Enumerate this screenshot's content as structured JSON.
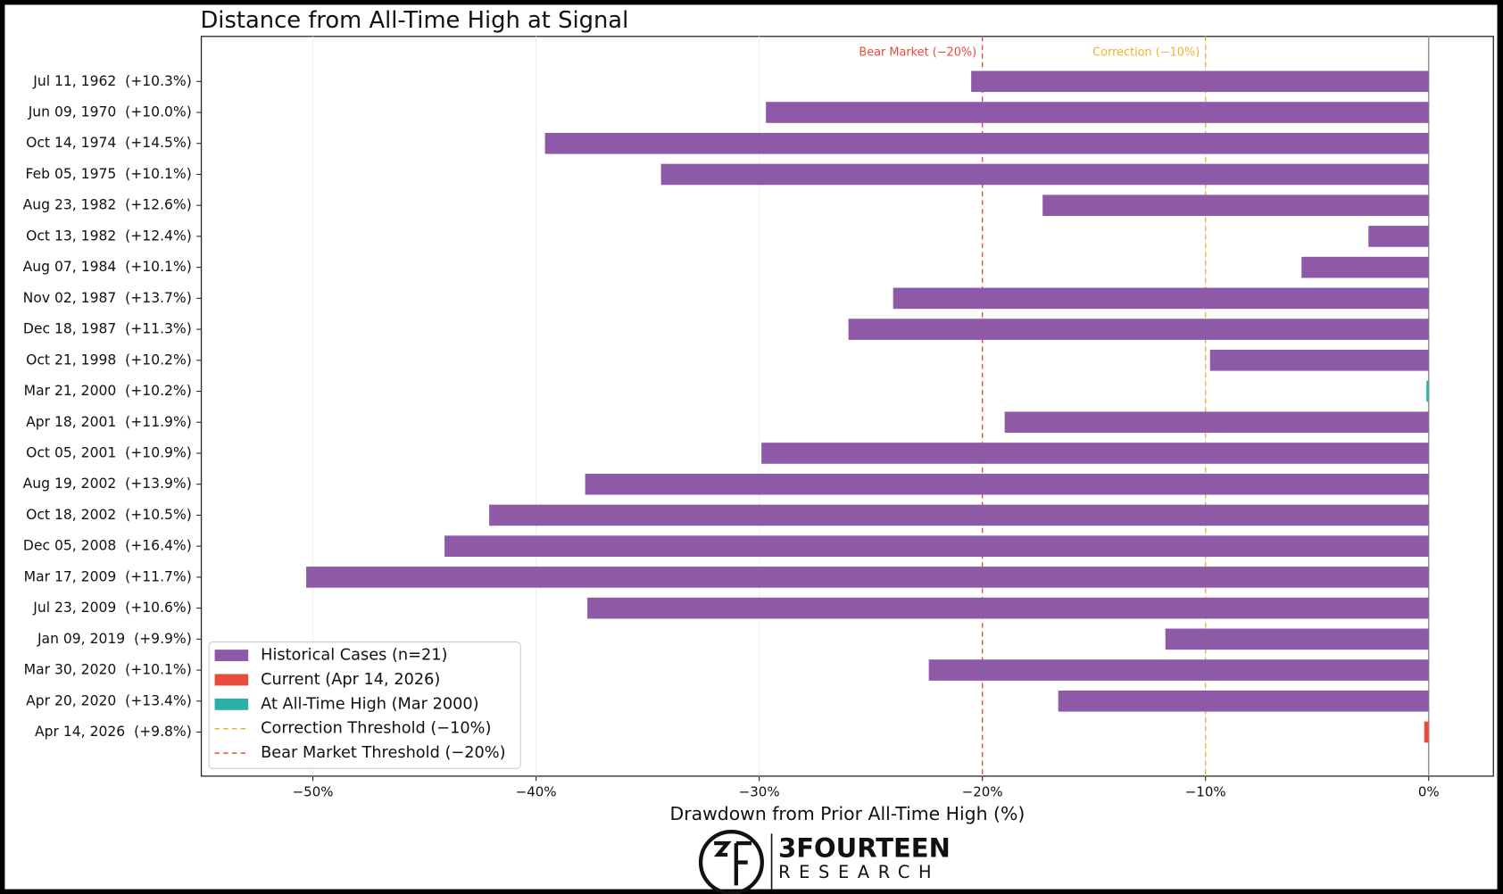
{
  "chart_data": {
    "type": "barh",
    "title": "Distance from All-Time High at Signal",
    "xlabel": "Drawdown from Prior All-Time High (%)",
    "categories": [
      "Jul 11, 1962  (+10.3%)",
      "Jun 09, 1970  (+10.0%)",
      "Oct 14, 1974  (+14.5%)",
      "Feb 05, 1975  (+10.1%)",
      "Aug 23, 1982  (+12.6%)",
      "Oct 13, 1982  (+12.4%)",
      "Aug 07, 1984  (+10.1%)",
      "Nov 02, 1987  (+13.7%)",
      "Dec 18, 1987  (+11.3%)",
      "Oct 21, 1998  (+10.2%)",
      "Mar 21, 2000  (+10.2%)",
      "Apr 18, 2001  (+11.9%)",
      "Oct 05, 2001  (+10.9%)",
      "Aug 19, 2002  (+13.9%)",
      "Oct 18, 2002  (+10.5%)",
      "Dec 05, 2008  (+16.4%)",
      "Mar 17, 2009  (+11.7%)",
      "Jul 23, 2009  (+10.6%)",
      "Jan 09, 2019  (+9.9%)",
      "Mar 30, 2020  (+10.1%)",
      "Apr 20, 2020  (+13.4%)",
      "Apr 14, 2026  (+9.8%)"
    ],
    "values": [
      -20.5,
      -29.7,
      -39.6,
      -34.4,
      -17.3,
      -2.7,
      -5.7,
      -24.0,
      -26.0,
      -9.8,
      -0.1,
      -19.0,
      -29.9,
      -37.8,
      -42.1,
      -44.1,
      -50.3,
      -37.7,
      -11.8,
      -22.4,
      -16.6,
      -0.2
    ],
    "colors": [
      "#8e5aa8",
      "#8e5aa8",
      "#8e5aa8",
      "#8e5aa8",
      "#8e5aa8",
      "#8e5aa8",
      "#8e5aa8",
      "#8e5aa8",
      "#8e5aa8",
      "#8e5aa8",
      "#2ab0a8",
      "#8e5aa8",
      "#8e5aa8",
      "#8e5aa8",
      "#8e5aa8",
      "#8e5aa8",
      "#8e5aa8",
      "#8e5aa8",
      "#8e5aa8",
      "#8e5aa8",
      "#8e5aa8",
      "#e74c3c"
    ],
    "xlim": [
      -55,
      2.9
    ],
    "xticks": [
      {
        "value": -50,
        "label": "−50%"
      },
      {
        "value": -40,
        "label": "−40%"
      },
      {
        "value": -30,
        "label": "−30%"
      },
      {
        "value": -20,
        "label": "−20%"
      },
      {
        "value": -10,
        "label": "−10%"
      },
      {
        "value": 0,
        "label": "0%"
      }
    ],
    "grid": true,
    "reference_lines": [
      {
        "value": -20,
        "label": "Bear Market (−20%)",
        "color": "#e74c3c"
      },
      {
        "value": -10,
        "label": "Correction (−10%)",
        "color": "#f0b030"
      }
    ],
    "legend_position": "lower left",
    "legend": [
      {
        "name": "Historical Cases (n=21)",
        "color": "#8e5aa8",
        "style": "patch"
      },
      {
        "name": "Current (Apr 14, 2026)",
        "color": "#e74c3c",
        "style": "patch"
      },
      {
        "name": "At All-Time High (Mar 2000)",
        "color": "#2ab0a8",
        "style": "patch"
      },
      {
        "name": "Correction Threshold (−10%)",
        "color": "#f0b030",
        "style": "dashed"
      },
      {
        "name": "Bear Market Threshold (−20%)",
        "color": "#e74c3c",
        "style": "dashed"
      }
    ]
  },
  "logo": {
    "name": "3FOURTEEN",
    "sub": "RESEARCH"
  }
}
